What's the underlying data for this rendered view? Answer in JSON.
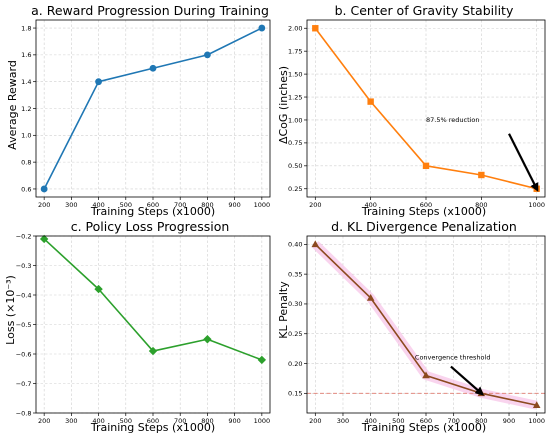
{
  "chart_data": [
    {
      "type": "line",
      "marker": "circle",
      "color": "#1f77b4",
      "title": "a. Reward Progression During Training",
      "xlabel": "Training Steps (x1000)",
      "ylabel": "Average Reward",
      "x": [
        200,
        400,
        600,
        800,
        1000
      ],
      "series": [
        {
          "values": [
            0.6,
            1.4,
            1.5,
            1.6,
            1.8
          ]
        }
      ],
      "xlim": [
        170,
        1030
      ],
      "ylim": [
        0.54,
        1.86
      ],
      "xticks": [
        200,
        300,
        400,
        500,
        600,
        700,
        800,
        900,
        1000
      ],
      "yticks": [
        0.6,
        0.8,
        1.0,
        1.2,
        1.4,
        1.6,
        1.8
      ],
      "ytick_labels": [
        "0.6",
        "0.8",
        "1.0",
        "1.2",
        "1.4",
        "1.6",
        "1.8"
      ],
      "grid": true
    },
    {
      "type": "line",
      "marker": "square",
      "color": "#ff7f0e",
      "title": "b. Center of Gravity Stability",
      "xlabel": "Training Steps (x1000)",
      "ylabel": "ΔCoG (inches)",
      "x": [
        200,
        400,
        600,
        800,
        1000
      ],
      "series": [
        {
          "values": [
            2.0,
            1.2,
            0.5,
            0.4,
            0.25
          ]
        }
      ],
      "xlim": [
        170,
        1030
      ],
      "ylim": [
        0.16,
        2.09
      ],
      "xticks": [
        200,
        400,
        600,
        800,
        1000
      ],
      "yticks": [
        0.25,
        0.5,
        0.75,
        1.0,
        1.25,
        1.5,
        1.75,
        2.0
      ],
      "ytick_labels": [
        "0.25",
        "0.50",
        "0.75",
        "1.00",
        "1.25",
        "1.50",
        "1.75",
        "2.00"
      ],
      "grid": true,
      "annotations": [
        {
          "text": "87.5% reduction",
          "x": 600,
          "y": 1.0,
          "arrow_from": [
            900,
            0.85
          ],
          "arrow_to": [
            1000,
            0.25
          ]
        }
      ]
    },
    {
      "type": "line",
      "marker": "diamond",
      "color": "#2ca02c",
      "title": "c. Policy Loss Progression",
      "xlabel": "Training Steps (x1000)",
      "ylabel": "Loss (×10⁻³)",
      "x": [
        200,
        400,
        600,
        800,
        1000
      ],
      "series": [
        {
          "values": [
            -0.21,
            -0.38,
            -0.59,
            -0.55,
            -0.62
          ]
        }
      ],
      "xlim": [
        170,
        1030
      ],
      "ylim": [
        -0.8,
        -0.2
      ],
      "xticks": [
        200,
        300,
        400,
        500,
        600,
        700,
        800,
        900,
        1000
      ],
      "yticks": [
        -0.2,
        -0.3,
        -0.4,
        -0.5,
        -0.6,
        -0.7,
        -0.8
      ],
      "ytick_labels": [
        "−0.2",
        "−0.3",
        "−0.4",
        "−0.5",
        "−0.6",
        "−0.7",
        "−0.8"
      ],
      "grid": true
    },
    {
      "type": "line",
      "marker": "triangle",
      "color": "#8c4a1f",
      "title": "d. KL Divergence Penalization",
      "xlabel": "Training Steps (x1000)",
      "ylabel": "KL Penalty",
      "x": [
        200,
        400,
        600,
        800,
        1000
      ],
      "series": [
        {
          "values": [
            0.4,
            0.31,
            0.18,
            0.15,
            0.13
          ]
        }
      ],
      "xlim": [
        170,
        1030
      ],
      "ylim": [
        0.117,
        0.414
      ],
      "xticks": [
        200,
        300,
        400,
        500,
        600,
        700,
        800,
        900,
        1000
      ],
      "yticks": [
        0.15,
        0.2,
        0.25,
        0.3,
        0.35,
        0.4
      ],
      "ytick_labels": [
        "0.15",
        "0.20",
        "0.25",
        "0.30",
        "0.35",
        "0.40"
      ],
      "grid": true,
      "hline": {
        "y": 0.15,
        "color": "#e07b6f",
        "style": "dashed"
      },
      "highlight_color": "#f7c6e8",
      "annotations": [
        {
          "text": "Convergence threshold",
          "x": 560,
          "y": 0.21,
          "arrow_from": [
            690,
            0.195
          ],
          "arrow_to": [
            800,
            0.15
          ]
        }
      ]
    }
  ]
}
